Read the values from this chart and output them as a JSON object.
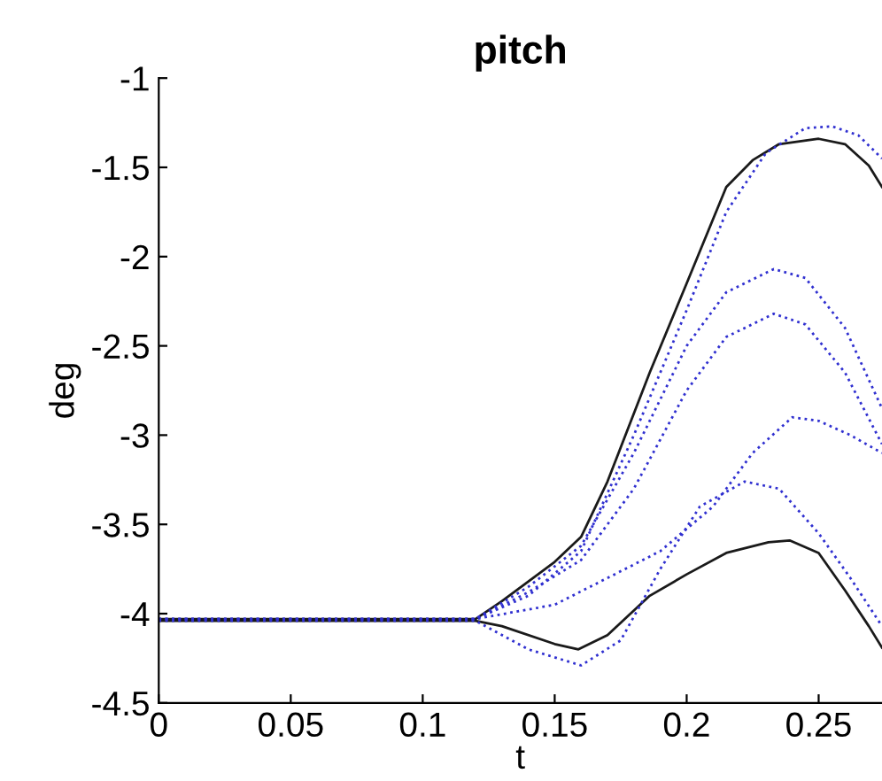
{
  "chart_data": {
    "type": "line",
    "title": "pitch",
    "xlabel": "t",
    "ylabel": "deg",
    "xlim": [
      0,
      0.274
    ],
    "ylim": [
      -4.5,
      -1
    ],
    "xticks": [
      0,
      0.05,
      0.1,
      0.15,
      0.2,
      0.25
    ],
    "yticks": [
      -4.5,
      -4,
      -3.5,
      -3,
      -2.5,
      -2,
      -1.5,
      -1
    ],
    "grid": false,
    "legend": false,
    "series": [
      {
        "color": "#1a1a1a",
        "line_style": "solid",
        "x": [
          0,
          0.12,
          0.13,
          0.15,
          0.16,
          0.17,
          0.186,
          0.2,
          0.215,
          0.225,
          0.235,
          0.25,
          0.26,
          0.269,
          0.274
        ],
        "values": [
          -4.03,
          -4.03,
          -3.93,
          -3.71,
          -3.57,
          -3.26,
          -2.65,
          -2.15,
          -1.61,
          -1.46,
          -1.37,
          -1.34,
          -1.37,
          -1.49,
          -1.61
        ]
      },
      {
        "color": "#1a1a1a",
        "line_style": "solid",
        "x": [
          0,
          0.12,
          0.13,
          0.15,
          0.159,
          0.17,
          0.186,
          0.2,
          0.215,
          0.231,
          0.239,
          0.25,
          0.26,
          0.269,
          0.274
        ],
        "values": [
          -4.04,
          -4.04,
          -4.07,
          -4.17,
          -4.2,
          -4.12,
          -3.9,
          -3.78,
          -3.66,
          -3.6,
          -3.59,
          -3.66,
          -3.87,
          -4.07,
          -4.19
        ]
      },
      {
        "color": "#3030d0",
        "line_style": "dotted",
        "x": [
          0,
          0.12,
          0.14,
          0.16,
          0.18,
          0.2,
          0.215,
          0.23,
          0.245,
          0.255,
          0.265,
          0.274
        ],
        "values": [
          -4.03,
          -4.03,
          -3.9,
          -3.65,
          -3.0,
          -2.3,
          -1.75,
          -1.42,
          -1.28,
          -1.27,
          -1.32,
          -1.45
        ]
      },
      {
        "color": "#3030d0",
        "line_style": "dotted",
        "x": [
          0,
          0.12,
          0.14,
          0.16,
          0.18,
          0.2,
          0.215,
          0.233,
          0.245,
          0.26,
          0.274
        ],
        "values": [
          -4.03,
          -4.03,
          -3.85,
          -3.62,
          -3.1,
          -2.5,
          -2.2,
          -2.07,
          -2.12,
          -2.4,
          -2.85
        ]
      },
      {
        "color": "#3030d0",
        "line_style": "dotted",
        "x": [
          0,
          0.12,
          0.14,
          0.16,
          0.18,
          0.2,
          0.215,
          0.233,
          0.245,
          0.26,
          0.274
        ],
        "values": [
          -4.03,
          -4.03,
          -3.88,
          -3.7,
          -3.3,
          -2.75,
          -2.45,
          -2.32,
          -2.38,
          -2.65,
          -3.05
        ]
      },
      {
        "color": "#3030d0",
        "line_style": "dotted",
        "x": [
          0,
          0.12,
          0.15,
          0.17,
          0.19,
          0.21,
          0.225,
          0.24,
          0.25,
          0.262,
          0.274
        ],
        "values": [
          -4.03,
          -4.03,
          -3.95,
          -3.8,
          -3.65,
          -3.4,
          -3.1,
          -2.9,
          -2.92,
          -3.0,
          -3.1
        ]
      },
      {
        "color": "#3030d0",
        "line_style": "dotted",
        "x": [
          0,
          0.12,
          0.14,
          0.16,
          0.175,
          0.19,
          0.205,
          0.222,
          0.235,
          0.25,
          0.262,
          0.274
        ],
        "values": [
          -4.04,
          -4.04,
          -4.2,
          -4.29,
          -4.15,
          -3.75,
          -3.4,
          -3.26,
          -3.3,
          -3.55,
          -3.8,
          -4.07
        ]
      }
    ]
  }
}
